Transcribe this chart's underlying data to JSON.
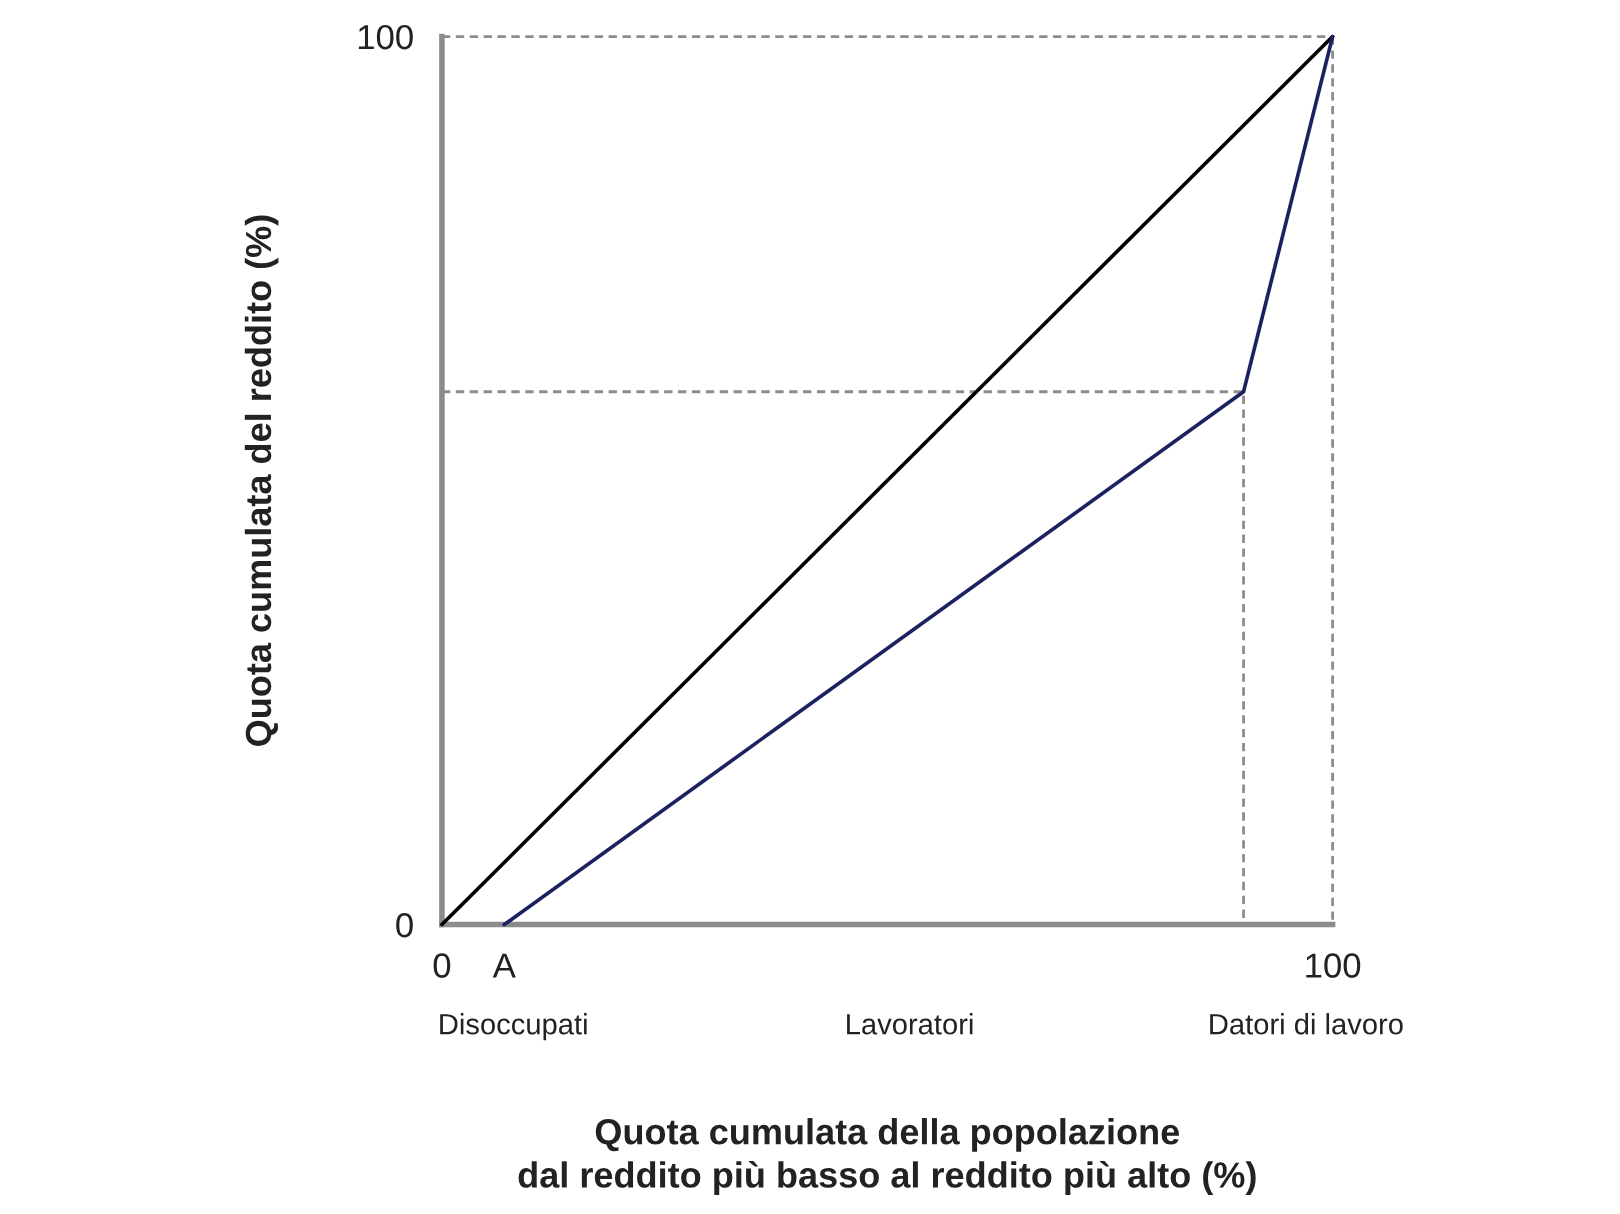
{
  "chart_data": {
    "type": "line",
    "xlabel": "Quota cumulata della popolazione\ndal reddito più basso al reddito più alto (%)",
    "ylabel": "Quota cumulata del reddito (%)",
    "series": [
      {
        "color": "#8c8c8c",
        "line_style": "dashed",
        "x": [
          0,
          90,
          90
        ],
        "values": [
          60,
          60,
          0
        ]
      },
      {
        "color": "#8c8c8c",
        "line_style": "dashed",
        "x": [
          0,
          100
        ],
        "values": [
          100,
          100
        ]
      },
      {
        "color": "#8c8c8c",
        "line_style": "dashed",
        "x": [
          100,
          100
        ],
        "values": [
          100,
          0
        ]
      },
      {
        "color": "#000000",
        "line_style": "solid",
        "x": [
          0,
          100
        ],
        "values": [
          0,
          100
        ]
      },
      {
        "color": "#1c2260",
        "line_style": "solid",
        "x": [
          7,
          90,
          100
        ],
        "values": [
          0,
          60,
          100
        ]
      }
    ],
    "xlim": [
      0,
      100
    ],
    "ylim": [
      0,
      100
    ],
    "xticks": [
      0,
      {
        "value": 7,
        "label": "A"
      },
      100
    ],
    "yticks": [
      0,
      100
    ],
    "annotations": [
      "Disoccupati",
      "Lavoratori",
      "Datori di lavoro"
    ]
  }
}
